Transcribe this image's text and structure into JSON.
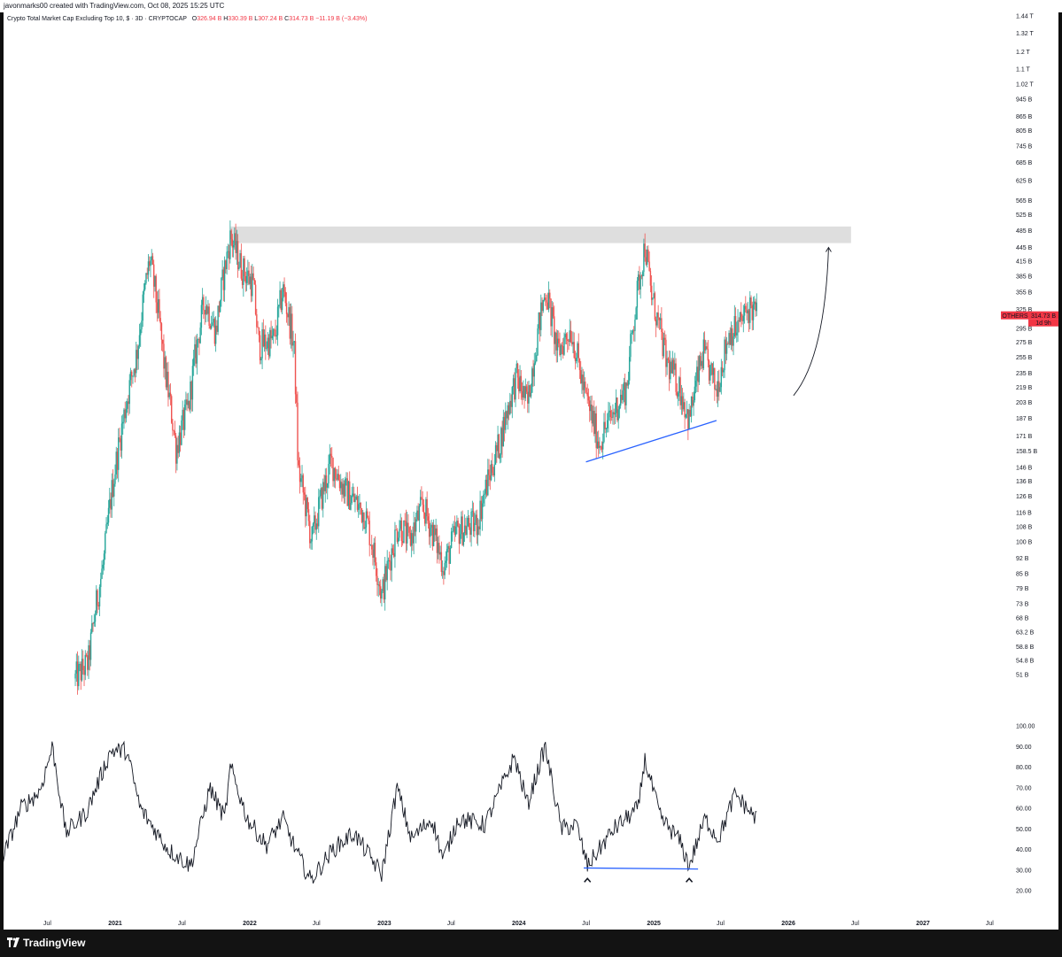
{
  "header": {
    "credit": "javonmarks00 created with TradingView.com, Oct 08, 2025 15:25 UTC"
  },
  "legend": {
    "symbol": "Crypto Total Market Cap Excluding Top 10, $ · 3D · CRYPTOCAP",
    "o_label": "O",
    "o_value": "326.94 B",
    "h_label": "H",
    "h_value": "330.39 B",
    "l_label": "L",
    "l_value": "307.24 B",
    "c_label": "C",
    "c_value": "314.73 B",
    "change": "−11.19 B (−3.43%)"
  },
  "price_tag": {
    "symbol": "OTHERS",
    "price": "314.73 B",
    "countdown": "1d 9h"
  },
  "footer": {
    "brand": "TradingView"
  },
  "colors": {
    "up": "#26a69a",
    "down": "#ef5350",
    "trendline": "#2962ff",
    "zone": "#dedede",
    "tag": "#f23645"
  },
  "chart_data": [
    {
      "type": "candlestick",
      "title": "Crypto Total Market Cap Excluding Top 10, $ · 3D · CRYPTOCAP",
      "y_scale": "log",
      "y_ticks": [
        "1.44 T",
        "1.32 T",
        "1.2 T",
        "1.1 T",
        "1.02 T",
        "945 B",
        "865 B",
        "805 B",
        "745 B",
        "685 B",
        "625 B",
        "565 B",
        "525 B",
        "485 B",
        "445 B",
        "415 B",
        "385 B",
        "355 B",
        "325 B",
        "295 B",
        "275 B",
        "255 B",
        "235 B",
        "219 B",
        "203 B",
        "187 B",
        "171 B",
        "158.5 B",
        "146 B",
        "136 B",
        "126 B",
        "116 B",
        "108 B",
        "100 B",
        "92 B",
        "85 B",
        "79 B",
        "73 B",
        "68 B",
        "63.2 B",
        "58.8 B",
        "54.8 B",
        "51 B"
      ],
      "y_tick_values_b": [
        1440,
        1320,
        1200,
        1100,
        1020,
        945,
        865,
        805,
        745,
        685,
        625,
        565,
        525,
        485,
        445,
        415,
        385,
        355,
        325,
        295,
        275,
        255,
        235,
        219,
        203,
        187,
        171,
        158.5,
        146,
        136,
        126,
        116,
        108,
        100,
        92,
        85,
        79,
        73,
        68,
        63.2,
        58.8,
        54.8,
        51
      ],
      "x_ticks": [
        {
          "label": "Jul",
          "date": "2020-07-01",
          "bold": false
        },
        {
          "label": "2021",
          "date": "2021-01-01",
          "bold": true
        },
        {
          "label": "Jul",
          "date": "2021-07-01",
          "bold": false
        },
        {
          "label": "2022",
          "date": "2022-01-01",
          "bold": true
        },
        {
          "label": "Jul",
          "date": "2022-07-01",
          "bold": false
        },
        {
          "label": "2023",
          "date": "2023-01-01",
          "bold": true
        },
        {
          "label": "Jul",
          "date": "2023-07-01",
          "bold": false
        },
        {
          "label": "2024",
          "date": "2024-01-01",
          "bold": true
        },
        {
          "label": "Jul",
          "date": "2024-07-01",
          "bold": false
        },
        {
          "label": "2025",
          "date": "2025-01-01",
          "bold": true
        },
        {
          "label": "Jul",
          "date": "2025-07-01",
          "bold": false
        },
        {
          "label": "2026",
          "date": "2026-01-01",
          "bold": true
        },
        {
          "label": "Jul",
          "date": "2026-07-01",
          "bold": false
        },
        {
          "label": "2027",
          "date": "2027-01-01",
          "bold": true
        },
        {
          "label": "Jul",
          "date": "2027-07-01",
          "bold": false
        }
      ],
      "x_range": [
        "2020-03-01",
        "2028-02-01"
      ],
      "anchors": [
        {
          "date": "2020-09-15",
          "value_b": 50
        },
        {
          "date": "2020-10-20",
          "value_b": 54
        },
        {
          "date": "2020-12-01",
          "value_b": 90
        },
        {
          "date": "2021-01-15",
          "value_b": 170
        },
        {
          "date": "2021-03-01",
          "value_b": 260
        },
        {
          "date": "2021-04-05",
          "value_b": 420
        },
        {
          "date": "2021-05-15",
          "value_b": 240
        },
        {
          "date": "2021-06-15",
          "value_b": 160
        },
        {
          "date": "2021-07-20",
          "value_b": 200
        },
        {
          "date": "2021-09-01",
          "value_b": 340
        },
        {
          "date": "2021-10-01",
          "value_b": 290
        },
        {
          "date": "2021-11-10",
          "value_b": 470
        },
        {
          "date": "2021-12-10",
          "value_b": 400
        },
        {
          "date": "2022-01-10",
          "value_b": 370
        },
        {
          "date": "2022-01-25",
          "value_b": 270
        },
        {
          "date": "2022-03-10",
          "value_b": 280
        },
        {
          "date": "2022-04-01",
          "value_b": 360
        },
        {
          "date": "2022-05-01",
          "value_b": 270
        },
        {
          "date": "2022-05-12",
          "value_b": 145
        },
        {
          "date": "2022-06-18",
          "value_b": 100
        },
        {
          "date": "2022-08-10",
          "value_b": 150
        },
        {
          "date": "2022-09-15",
          "value_b": 130
        },
        {
          "date": "2022-11-10",
          "value_b": 115
        },
        {
          "date": "2022-12-25",
          "value_b": 76
        },
        {
          "date": "2023-02-10",
          "value_b": 110
        },
        {
          "date": "2023-03-10",
          "value_b": 100
        },
        {
          "date": "2023-04-15",
          "value_b": 120
        },
        {
          "date": "2023-06-12",
          "value_b": 88
        },
        {
          "date": "2023-07-15",
          "value_b": 105
        },
        {
          "date": "2023-09-10",
          "value_b": 110
        },
        {
          "date": "2023-11-10",
          "value_b": 165
        },
        {
          "date": "2023-12-25",
          "value_b": 230
        },
        {
          "date": "2024-01-25",
          "value_b": 200
        },
        {
          "date": "2024-03-14",
          "value_b": 360
        },
        {
          "date": "2024-04-15",
          "value_b": 260
        },
        {
          "date": "2024-05-20",
          "value_b": 295
        },
        {
          "date": "2024-06-25",
          "value_b": 215
        },
        {
          "date": "2024-08-05",
          "value_b": 165
        },
        {
          "date": "2024-09-10",
          "value_b": 190
        },
        {
          "date": "2024-10-20",
          "value_b": 220
        },
        {
          "date": "2024-12-08",
          "value_b": 450
        },
        {
          "date": "2024-12-25",
          "value_b": 350
        },
        {
          "date": "2025-02-03",
          "value_b": 250
        },
        {
          "date": "2025-03-10",
          "value_b": 220
        },
        {
          "date": "2025-04-07",
          "value_b": 185
        },
        {
          "date": "2025-05-15",
          "value_b": 260
        },
        {
          "date": "2025-06-20",
          "value_b": 215
        },
        {
          "date": "2025-07-25",
          "value_b": 290
        },
        {
          "date": "2025-08-15",
          "value_b": 295
        },
        {
          "date": "2025-09-20",
          "value_b": 330
        },
        {
          "date": "2025-10-08",
          "value_b": 314.73
        }
      ],
      "annotations": {
        "resistance_zone_b": [
          455,
          495
        ],
        "resistance_zone_dates": [
          "2021-11-10",
          "2026-06-20"
        ],
        "support_trendline": [
          {
            "date": "2024-07-01",
            "value_b": 150
          },
          {
            "date": "2025-06-20",
            "value_b": 185
          }
        ],
        "projection_arrow": [
          {
            "date": "2026-01-15",
            "value_b": 210
          },
          {
            "date": "2026-04-20",
            "value_b": 445
          }
        ]
      }
    },
    {
      "type": "line",
      "panel": "oscillator",
      "y_ticks": [
        "100.00",
        "90.00",
        "80.00",
        "70.00",
        "60.00",
        "50.00",
        "40.00",
        "30.00",
        "20.00"
      ],
      "y_tick_values": [
        100,
        90,
        80,
        70,
        60,
        50,
        40,
        30,
        20
      ],
      "anchors": [
        {
          "date": "2020-03-01",
          "value": 35
        },
        {
          "date": "2020-04-20",
          "value": 60
        },
        {
          "date": "2020-06-10",
          "value": 68
        },
        {
          "date": "2020-07-15",
          "value": 90
        },
        {
          "date": "2020-08-20",
          "value": 48
        },
        {
          "date": "2020-10-15",
          "value": 58
        },
        {
          "date": "2020-12-20",
          "value": 88
        },
        {
          "date": "2021-02-01",
          "value": 88
        },
        {
          "date": "2021-03-10",
          "value": 60
        },
        {
          "date": "2021-05-25",
          "value": 40
        },
        {
          "date": "2021-07-25",
          "value": 32
        },
        {
          "date": "2021-09-15",
          "value": 70
        },
        {
          "date": "2021-10-25",
          "value": 55
        },
        {
          "date": "2021-11-10",
          "value": 80
        },
        {
          "date": "2021-12-25",
          "value": 55
        },
        {
          "date": "2022-02-15",
          "value": 42
        },
        {
          "date": "2022-04-01",
          "value": 55
        },
        {
          "date": "2022-05-05",
          "value": 40
        },
        {
          "date": "2022-06-15",
          "value": 25
        },
        {
          "date": "2022-08-15",
          "value": 40
        },
        {
          "date": "2022-10-10",
          "value": 48
        },
        {
          "date": "2022-12-25",
          "value": 28
        },
        {
          "date": "2023-02-05",
          "value": 70
        },
        {
          "date": "2023-03-15",
          "value": 45
        },
        {
          "date": "2023-05-10",
          "value": 55
        },
        {
          "date": "2023-06-10",
          "value": 35
        },
        {
          "date": "2023-07-20",
          "value": 55
        },
        {
          "date": "2023-10-01",
          "value": 52
        },
        {
          "date": "2023-12-20",
          "value": 85
        },
        {
          "date": "2024-01-25",
          "value": 62
        },
        {
          "date": "2024-03-12",
          "value": 90
        },
        {
          "date": "2024-04-25",
          "value": 50
        },
        {
          "date": "2024-06-05",
          "value": 52
        },
        {
          "date": "2024-07-05",
          "value": 32
        },
        {
          "date": "2024-09-15",
          "value": 50
        },
        {
          "date": "2024-11-20",
          "value": 60
        },
        {
          "date": "2024-12-07",
          "value": 84
        },
        {
          "date": "2025-01-20",
          "value": 55
        },
        {
          "date": "2025-03-10",
          "value": 45
        },
        {
          "date": "2025-04-07",
          "value": 32
        },
        {
          "date": "2025-05-20",
          "value": 55
        },
        {
          "date": "2025-06-25",
          "value": 45
        },
        {
          "date": "2025-08-10",
          "value": 67
        },
        {
          "date": "2025-09-20",
          "value": 58
        },
        {
          "date": "2025-10-08",
          "value": 55
        }
      ],
      "annotations": {
        "support_line": [
          {
            "date": "2024-06-25",
            "value": 31
          },
          {
            "date": "2025-05-01",
            "value": 30.5
          }
        ],
        "markers": [
          {
            "date": "2024-07-05",
            "value": 28
          },
          {
            "date": "2025-04-07",
            "value": 28
          }
        ]
      }
    }
  ]
}
